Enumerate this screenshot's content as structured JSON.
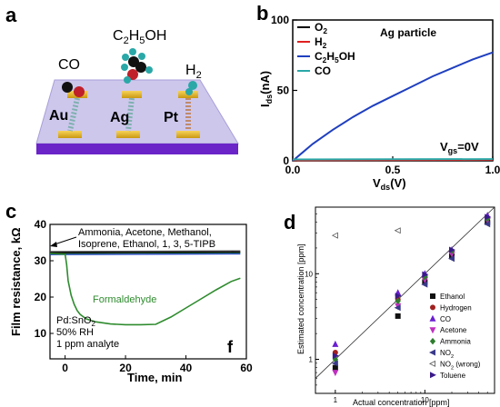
{
  "panels": {
    "a": {
      "label": "a",
      "molecules": [
        "CO",
        "C2H5OH",
        "H2"
      ],
      "metals": [
        "Au",
        "Ag",
        "Pt"
      ]
    },
    "b": {
      "label": "b"
    },
    "c": {
      "label": "c",
      "sublabel": "f",
      "annotation": [
        "Ammonia, Acetone, Methanol,",
        "Isoprene, Ethanol, 1, 3, 5-TIPB"
      ],
      "curve_label": "Formaldehyde",
      "conditions": [
        "Pd:SnO2",
        "50% RH",
        "1 ppm analyte"
      ]
    },
    "d": {
      "label": "d"
    }
  },
  "chart_data": [
    {
      "panel": "b",
      "type": "line",
      "annotation": "Ag particle",
      "gate_label": "Vgs=0V",
      "xlabel": "Vds(V)",
      "ylabel": "Ids(nA)",
      "xlim": [
        0,
        1
      ],
      "ylim": [
        0,
        100
      ],
      "xticks": [
        "0.0",
        "0.5",
        "1.0"
      ],
      "yticks": [
        "0",
        "50",
        "100"
      ],
      "legend_position": "top-left",
      "series": [
        {
          "name": "O2",
          "color": "#000000",
          "x": [
            0,
            1
          ],
          "y": [
            0.3,
            0.5
          ]
        },
        {
          "name": "H2",
          "color": "#e02020",
          "x": [
            0,
            1
          ],
          "y": [
            0.4,
            0.7
          ]
        },
        {
          "name": "C2H5OH",
          "color": "#1f3fbf",
          "x": [
            0,
            0.05,
            0.1,
            0.2,
            0.3,
            0.4,
            0.5,
            0.6,
            0.7,
            0.8,
            0.9,
            1.0
          ],
          "y": [
            0,
            6,
            12,
            22,
            31,
            39,
            46,
            53,
            60,
            66,
            72,
            77
          ]
        },
        {
          "name": "CO",
          "color": "#2aa8a8",
          "x": [
            0,
            1
          ],
          "y": [
            1.0,
            1.2
          ]
        }
      ]
    },
    {
      "panel": "c",
      "type": "line",
      "xlabel": "Time, min",
      "ylabel": "Film resistance, kΩ",
      "xlim": [
        -5,
        60
      ],
      "ylim": [
        3,
        40
      ],
      "xticks": [
        0,
        20,
        40,
        60
      ],
      "yticks": [
        10,
        20,
        30,
        40
      ],
      "series": [
        {
          "name": "Formaldehyde",
          "color": "#2e8b2e",
          "x": [
            -5,
            0,
            0.5,
            1,
            2,
            3,
            4,
            5,
            7,
            10,
            15,
            20,
            25,
            30,
            35,
            40,
            45,
            50,
            55,
            58
          ],
          "y": [
            32,
            31.8,
            29,
            24.5,
            20.5,
            18,
            16.3,
            15.2,
            14,
            13.2,
            12.6,
            12.4,
            12.4,
            12.5,
            14.5,
            17,
            19.5,
            22,
            24.3,
            25.2
          ]
        },
        {
          "color": "#000000",
          "x": [
            -5,
            58
          ],
          "y": [
            32.2,
            32.4
          ]
        },
        {
          "color": "#1f3fbf",
          "x": [
            -5,
            58
          ],
          "y": [
            31.7,
            31.9
          ]
        },
        {
          "color": "#3a9a3a",
          "x": [
            -5,
            58
          ],
          "y": [
            32.0,
            32.2
          ]
        },
        {
          "color": "#555555",
          "x": [
            -5,
            58
          ],
          "y": [
            32.5,
            32.7
          ]
        }
      ]
    },
    {
      "panel": "d",
      "type": "scatter",
      "xlabel": "Actual concentration [ppm]",
      "ylabel": "Estimated concentration [ppm]",
      "xscale": "log",
      "yscale": "log",
      "xlim": [
        0.6,
        60
      ],
      "ylim": [
        0.4,
        60
      ],
      "xticks": [
        1,
        10
      ],
      "yticks": [
        1,
        10
      ],
      "legend_position": "right",
      "series": [
        {
          "name": "Ethanol",
          "marker": "square",
          "color": "#111111",
          "x": [
            1,
            5,
            10,
            20,
            50
          ],
          "y": [
            0.8,
            3.2,
            8,
            16,
            40
          ]
        },
        {
          "name": "Hydrogen",
          "marker": "circle",
          "color": "#a02020",
          "x": [
            1,
            5,
            10,
            20,
            50
          ],
          "y": [
            1.2,
            5,
            9,
            18,
            45
          ]
        },
        {
          "name": "CO",
          "marker": "triangle-up",
          "color": "#6a1fd0",
          "x": [
            1,
            5,
            10,
            20,
            50
          ],
          "y": [
            1.5,
            6,
            10,
            19,
            48
          ]
        },
        {
          "name": "Acetone",
          "marker": "triangle-down",
          "color": "#c030c0",
          "x": [
            1,
            5,
            10,
            20,
            50
          ],
          "y": [
            0.7,
            4.2,
            8.5,
            17,
            42
          ]
        },
        {
          "name": "Ammonia",
          "marker": "diamond",
          "color": "#2e7d2e",
          "x": [
            1,
            5,
            10,
            20,
            50
          ],
          "y": [
            1.0,
            4.8,
            9.2,
            18.5,
            44
          ]
        },
        {
          "name": "NO2",
          "marker": "triangle-left",
          "color": "#3a3a8a",
          "x": [
            1,
            5,
            10,
            20,
            50
          ],
          "y": [
            0.9,
            4.0,
            7.5,
            15,
            38
          ]
        },
        {
          "name": "NO2 (wrong)",
          "marker": "triangle-left-open",
          "color": "#555555",
          "x": [
            1,
            5
          ],
          "y": [
            28,
            32
          ]
        },
        {
          "name": "Toluene",
          "marker": "triangle-right",
          "color": "#3a1a8a",
          "x": [
            1,
            5,
            10,
            20,
            50
          ],
          "y": [
            1.1,
            5.5,
            9.8,
            19,
            46
          ]
        }
      ]
    }
  ]
}
